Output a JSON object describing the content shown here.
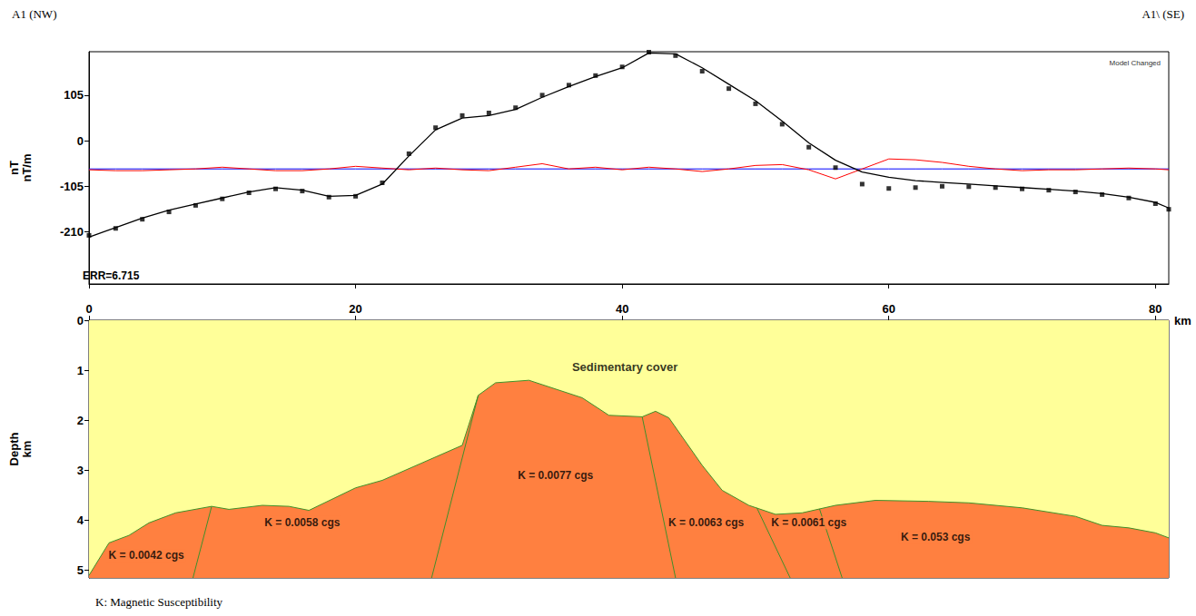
{
  "header": {
    "left": "A1 (NW)",
    "right": "A1\\ (SE)"
  },
  "footnote": "K: Magnetic Susceptibility",
  "chart_data": [
    {
      "type": "line",
      "ylabel": "nT\nnT/m",
      "xlim": [
        0,
        81
      ],
      "xticks": [
        0,
        20,
        40,
        60,
        80
      ],
      "ylim": [
        -330,
        205
      ],
      "yticks": [
        -210,
        -105,
        0,
        105
      ],
      "grid": false,
      "tick_labels": "y",
      "annotations": [
        "ERR=6.715",
        "Model Changed"
      ],
      "x": [
        0,
        2,
        4,
        6,
        8,
        10,
        12,
        14,
        16,
        18,
        20,
        22,
        24,
        26,
        28,
        30,
        32,
        34,
        36,
        38,
        40,
        42,
        44,
        46,
        48,
        50,
        52,
        54,
        56,
        58,
        60,
        62,
        64,
        66,
        68,
        70,
        72,
        74,
        76,
        78,
        80,
        81
      ],
      "series": [
        {
          "type": "line",
          "color": "#0000ff",
          "line_style": "solid",
          "values": [
            -65,
            -65,
            -65,
            -65,
            -65,
            -65,
            -65,
            -65,
            -65,
            -65,
            -65,
            -65,
            -65,
            -65,
            -65,
            -65,
            -65,
            -65,
            -65,
            -65,
            -65,
            -65,
            -65,
            -65,
            -65,
            -65,
            -65,
            -65,
            -65,
            -65,
            -65,
            -65,
            -65,
            -65,
            -65,
            -65,
            -65,
            -65,
            -65,
            -65,
            -65,
            -65
          ]
        },
        {
          "type": "line",
          "color": "#ff0000",
          "line_style": "solid",
          "values": [
            -67,
            -69,
            -69,
            -67,
            -65,
            -61,
            -65,
            -69,
            -69,
            -65,
            -59,
            -63,
            -67,
            -63,
            -67,
            -69,
            -61,
            -53,
            -65,
            -61,
            -67,
            -61,
            -65,
            -71,
            -65,
            -57,
            -55,
            -67,
            -88,
            -65,
            -42,
            -44,
            -50,
            -59,
            -65,
            -69,
            -67,
            -67,
            -65,
            -63,
            -65,
            -67
          ]
        },
        {
          "type": "line",
          "color": "#000000",
          "line_style": "solid",
          "values": [
            -222,
            -200,
            -178,
            -160,
            -146,
            -132,
            -118,
            -108,
            -114,
            -128,
            -126,
            -100,
            -35,
            25,
            52,
            58,
            72,
            100,
            125,
            148,
            168,
            202,
            200,
            168,
            130,
            92,
            45,
            -5,
            -45,
            -72,
            -84,
            -92,
            -96,
            -100,
            -104,
            -108,
            -112,
            -116,
            -122,
            -130,
            -142,
            -155
          ]
        },
        {
          "type": "scatter",
          "color": "#000000",
          "marker": "square",
          "values": [
            -218,
            -202,
            -181,
            -164,
            -149,
            -134,
            -120,
            -111,
            -116,
            -130,
            -128,
            -97,
            -30,
            30,
            58,
            64,
            76,
            105,
            128,
            150,
            170,
            204,
            196,
            160,
            120,
            85,
            38,
            -15,
            -62,
            -100,
            -110,
            -108,
            -105,
            -106,
            -108,
            -111,
            -114,
            -118,
            -124,
            -132,
            -145,
            -158
          ]
        }
      ]
    },
    {
      "type": "section",
      "xlabel": "km",
      "ylabel": "Depth\nkm",
      "xlim": [
        0,
        81
      ],
      "xticks": [
        0,
        20,
        40,
        60,
        80
      ],
      "ylim": [
        5.15,
        0
      ],
      "yticks": [
        0,
        1,
        2,
        3,
        4,
        5
      ],
      "grid": false,
      "layers": [
        {
          "label": "Sedimentary cover",
          "color": "#ffff99",
          "at": [
            40.2,
            0.93
          ]
        }
      ],
      "basement_top": {
        "color": "#ff8040",
        "x": [
          0,
          1.5,
          3,
          4.5,
          6.5,
          9.2,
          10.5,
          13,
          15,
          16.5,
          20,
          22,
          25,
          28,
          29.2,
          30.5,
          33,
          37,
          39,
          41.5,
          42.5,
          43.5,
          46,
          47.5,
          49.5,
          51.5,
          53.5,
          56,
          59,
          63,
          66,
          70,
          74,
          76,
          78,
          80,
          81
        ],
        "depth": [
          5.1,
          4.45,
          4.3,
          4.05,
          3.85,
          3.72,
          3.78,
          3.7,
          3.72,
          3.8,
          3.35,
          3.2,
          2.85,
          2.5,
          1.5,
          1.25,
          1.2,
          1.55,
          1.9,
          1.93,
          1.82,
          1.95,
          2.9,
          3.4,
          3.7,
          3.88,
          3.85,
          3.7,
          3.6,
          3.62,
          3.65,
          3.75,
          3.92,
          4.1,
          4.15,
          4.25,
          4.35
        ]
      },
      "contacts": [
        {
          "x": [
            9.2,
            7.8
          ],
          "depth": [
            3.72,
            5.15
          ]
        },
        {
          "x": [
            29.2,
            25.7
          ],
          "depth": [
            1.5,
            5.15
          ]
        },
        {
          "x": [
            41.5,
            44.0
          ],
          "depth": [
            1.93,
            5.15
          ]
        },
        {
          "x": [
            50.1,
            52.6
          ],
          "depth": [
            3.75,
            5.15
          ]
        },
        {
          "x": [
            54.8,
            56.5
          ],
          "depth": [
            3.77,
            5.15
          ]
        }
      ],
      "blocks": [
        {
          "label": "K = 0.0042 cgs",
          "at": [
            4.3,
            4.7
          ]
        },
        {
          "label": "K = 0.0058 cgs",
          "at": [
            16.0,
            4.04
          ]
        },
        {
          "label": "K = 0.0077 cgs",
          "at": [
            35.0,
            3.1
          ]
        },
        {
          "label": "K = 0.0063 cgs",
          "at": [
            46.3,
            4.05
          ]
        },
        {
          "label": "K = 0.0061 cgs",
          "at": [
            54.0,
            4.05
          ]
        },
        {
          "label": "K = 0.053 cgs",
          "at": [
            63.5,
            4.34
          ]
        }
      ]
    }
  ]
}
